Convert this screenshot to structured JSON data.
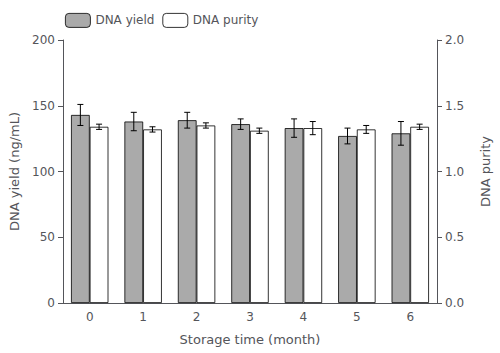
{
  "chart_data": {
    "type": "bar",
    "xlabel": "Storage time (month)",
    "ylabel": "DNA yield (ng/mL)",
    "y2label": "DNA purity",
    "categories": [
      "0",
      "1",
      "2",
      "3",
      "4",
      "5",
      "6"
    ],
    "series": [
      {
        "name": "DNA yield",
        "color": "#aaaaaa",
        "values": [
          143,
          138,
          139,
          136,
          133,
          127,
          129
        ],
        "errors": [
          8,
          7,
          6,
          4,
          7,
          6,
          9
        ]
      },
      {
        "name": "DNA purity",
        "color": "#ffffff",
        "axis": "y2",
        "values": [
          1.34,
          1.32,
          1.35,
          1.31,
          1.33,
          1.32,
          1.34
        ],
        "errors": [
          0.02,
          0.02,
          0.02,
          0.02,
          0.05,
          0.03,
          0.02
        ]
      }
    ],
    "ylim": [
      0,
      200
    ],
    "yticks": [
      0,
      50,
      100,
      150,
      200
    ],
    "y2lim": [
      0.0,
      2.0
    ],
    "y2ticks": [
      {
        "value": 0.0,
        "label": "0.0"
      },
      0.5,
      {
        "value": 1.0,
        "label": "1.0"
      },
      1.5,
      {
        "value": 2.0,
        "label": "2.0"
      }
    ],
    "grid": false,
    "legend": "upper left"
  }
}
